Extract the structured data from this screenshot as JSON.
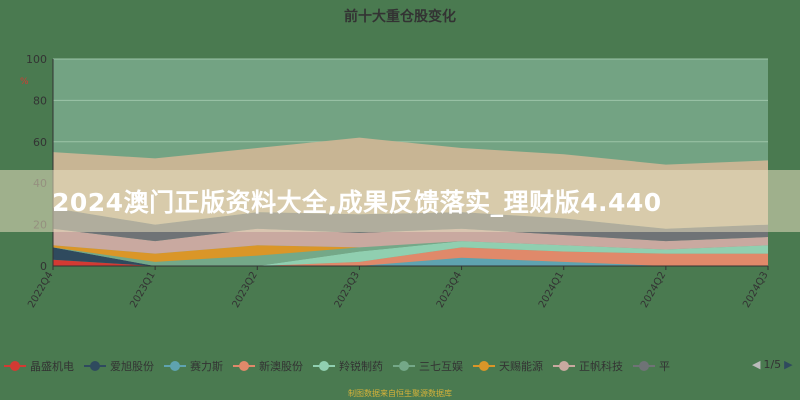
{
  "banner": "2024澳门正版资料大全,成果反馈落实_理财版4.440",
  "source": "制图数据来自恒生聚源数据库",
  "pager": "1/5",
  "chart_data": {
    "type": "area",
    "stacked": true,
    "title": "前十大重仓股变化",
    "ylabel": "%",
    "ylim": [
      0,
      100
    ],
    "yticks": [
      0,
      20,
      40,
      60,
      80,
      100
    ],
    "categories": [
      "2022Q4",
      "2023Q1",
      "2023Q2",
      "2023Q3",
      "2023Q4",
      "2024Q1",
      "2024Q2",
      "2024Q3"
    ],
    "legend_position": "bottom",
    "series": [
      {
        "name": "晶盛机电",
        "color": "#d33a33",
        "values": [
          3,
          0,
          0,
          0,
          0,
          0,
          0,
          0
        ]
      },
      {
        "name": "爱旭股份",
        "color": "#2f4a5e",
        "values": [
          6,
          0,
          0,
          0,
          0,
          0,
          0,
          0
        ]
      },
      {
        "name": "赛力斯",
        "color": "#5fa3b0",
        "values": [
          0,
          0,
          0,
          0,
          4,
          2,
          0,
          0
        ]
      },
      {
        "name": "新澳股份",
        "color": "#e0896a",
        "values": [
          0,
          0,
          0,
          2,
          5,
          5,
          6,
          6
        ]
      },
      {
        "name": "羚锐制药",
        "color": "#90cfb0",
        "values": [
          0,
          0,
          0,
          5,
          3,
          3,
          2,
          4
        ]
      },
      {
        "name": "三七互娱",
        "color": "#74a888",
        "values": [
          0,
          2,
          5,
          2,
          0,
          0,
          0,
          0
        ]
      },
      {
        "name": "天赐能源",
        "color": "#da9628",
        "values": [
          1,
          4,
          5,
          0,
          0,
          0,
          0,
          0
        ]
      },
      {
        "name": "正帆科技",
        "color": "#c9a9a0",
        "values": [
          8,
          6,
          8,
          7,
          6,
          5,
          4,
          4
        ]
      },
      {
        "name": "平",
        "color": "#6f7376",
        "values": [
          10,
          8,
          8,
          9,
          8,
          8,
          6,
          6
        ]
      },
      {
        "color": "#c8b594",
        "values": [
          27,
          32,
          31,
          37,
          31,
          31,
          31,
          31
        ]
      }
    ]
  }
}
